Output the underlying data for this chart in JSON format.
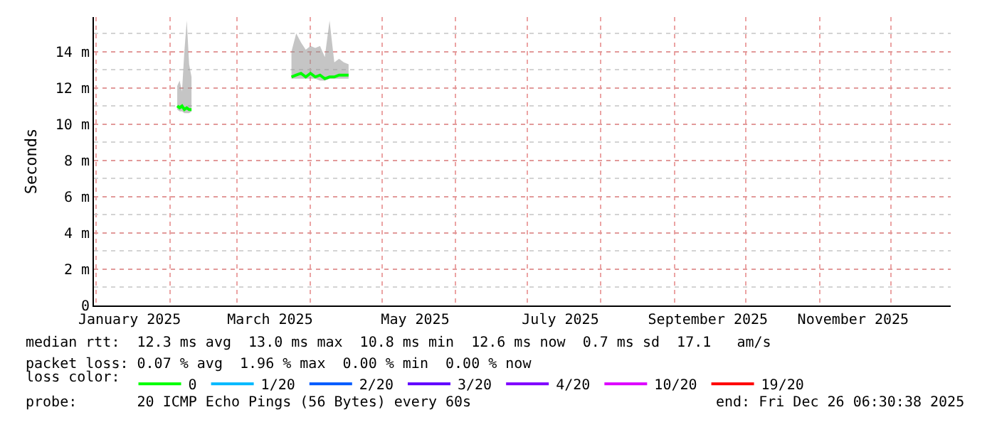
{
  "chart_data": {
    "type": "line",
    "ylabel": "Seconds",
    "legend_title": "loss color:",
    "x": [
      "2025-02-04",
      "2025-02-05",
      "2025-02-06",
      "2025-02-07",
      "2025-02-08",
      "2025-02-09",
      "2025-02-10",
      "2025-02-20",
      "2025-03-24",
      "2025-03-26",
      "2025-03-28",
      "2025-03-30",
      "2025-04-01",
      "2025-04-03",
      "2025-04-05",
      "2025-04-07",
      "2025-04-09",
      "2025-04-11",
      "2025-04-13",
      "2025-04-15",
      "2025-04-17"
    ],
    "series": [
      {
        "name": "0",
        "color": "#00ff00",
        "values": [
          11.0,
          10.9,
          11.0,
          10.8,
          10.9,
          10.8,
          10.8,
          null,
          12.6,
          12.7,
          12.8,
          12.6,
          12.8,
          12.6,
          12.7,
          12.5,
          12.6,
          12.6,
          12.7,
          12.7,
          12.7
        ],
        "lower": [
          10.8,
          10.7,
          10.7,
          10.6,
          10.6,
          10.6,
          10.7,
          null,
          12.5,
          12.5,
          12.5,
          12.5,
          12.5,
          12.5,
          12.4,
          12.4,
          12.5,
          12.5,
          12.5,
          12.5,
          12.5
        ],
        "upper": [
          12.1,
          12.4,
          11.8,
          14.0,
          15.7,
          13.3,
          12.6,
          null,
          14.0,
          15.0,
          14.5,
          14.1,
          14.3,
          14.2,
          14.3,
          13.7,
          15.7,
          13.4,
          13.6,
          13.4,
          13.3
        ]
      },
      {
        "name": "1/20",
        "color": "#00b8ff",
        "values": [
          null,
          null,
          null,
          null,
          null,
          null,
          null,
          null,
          null,
          null,
          null,
          null,
          null,
          null,
          null,
          null,
          null,
          null,
          null,
          null,
          null
        ]
      },
      {
        "name": "2/20",
        "color": "#0059ff",
        "values": [
          null,
          null,
          null,
          null,
          null,
          null,
          null,
          null,
          null,
          null,
          null,
          null,
          null,
          null,
          null,
          null,
          null,
          null,
          null,
          null,
          null
        ]
      },
      {
        "name": "3/20",
        "color": "#5e00ff",
        "values": [
          null,
          null,
          null,
          null,
          null,
          null,
          null,
          null,
          null,
          null,
          null,
          null,
          null,
          null,
          null,
          null,
          null,
          null,
          null,
          null,
          null
        ]
      },
      {
        "name": "4/20",
        "color": "#7e00ff",
        "values": [
          null,
          null,
          null,
          null,
          null,
          null,
          null,
          null,
          null,
          null,
          null,
          null,
          null,
          null,
          null,
          null,
          null,
          null,
          null,
          null,
          null
        ]
      },
      {
        "name": "10/20",
        "color": "#dd00ff",
        "values": [
          null,
          null,
          null,
          null,
          null,
          null,
          null,
          null,
          null,
          null,
          null,
          null,
          null,
          null,
          null,
          null,
          null,
          null,
          null,
          null,
          null
        ]
      },
      {
        "name": "19/20",
        "color": "#ff0000",
        "values": [
          null,
          null,
          null,
          null,
          null,
          null,
          null,
          null,
          null,
          null,
          null,
          null,
          null,
          null,
          null,
          null,
          null,
          null,
          null,
          null,
          null
        ]
      }
    ],
    "xlim": [
      "2024-12-31",
      "2025-12-26"
    ],
    "xticks": [
      {
        "value": "2025-01-15",
        "label": "January 2025"
      },
      {
        "value": "2025-03-15",
        "label": "March 2025"
      },
      {
        "value": "2025-05-15",
        "label": "May 2025"
      },
      {
        "value": "2025-07-15",
        "label": "July 2025"
      },
      {
        "value": "2025-09-15",
        "label": "September 2025"
      },
      {
        "value": "2025-11-15",
        "label": "November 2025"
      }
    ],
    "ylim": [
      0,
      15.9
    ],
    "yticks": [
      0,
      {
        "value": 2,
        "label": "2 m"
      },
      {
        "value": 4,
        "label": "4 m"
      },
      {
        "value": 6,
        "label": "6 m"
      },
      {
        "value": 8,
        "label": "8 m"
      },
      {
        "value": 10,
        "label": "10 m"
      },
      {
        "value": 12,
        "label": "12 m"
      },
      {
        "value": 14,
        "label": "14 m"
      }
    ],
    "grid": true,
    "legend": "bottom",
    "marker": "none",
    "line_style": "solid",
    "annotations": [
      "median rtt:  12.3 ms avg  13.0 ms max  10.8 ms min  12.6 ms now  0.7 ms sd  17.1   am/s",
      "packet loss: 0.07 % avg  1.96 % max  0.00 % min  0.00 % now",
      "probe:       20 ICMP Echo Pings (56 Bytes) every 60s",
      "end: Fri Dec 26 06:30:38 2025"
    ]
  }
}
